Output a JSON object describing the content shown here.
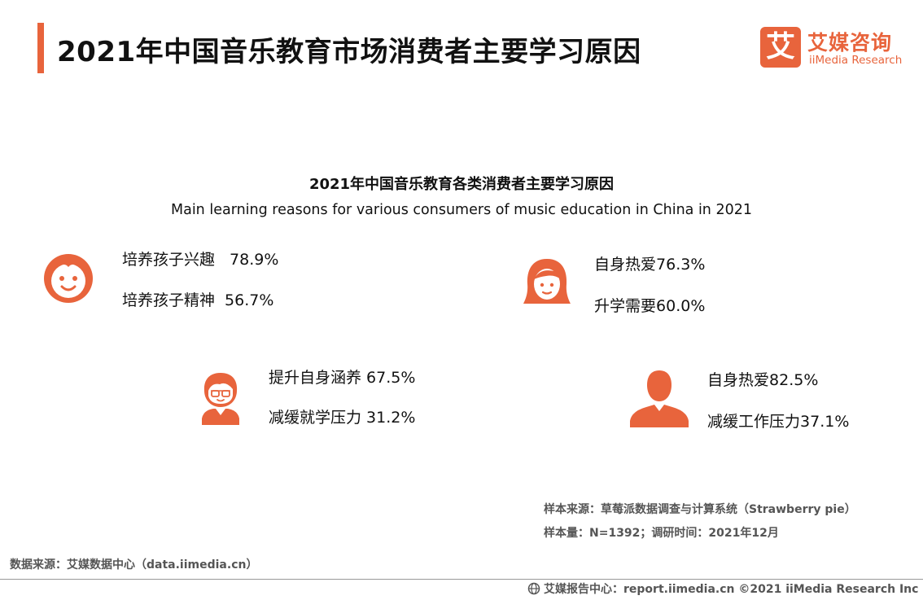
{
  "page_title": "2021年中国音乐教育市场消费者主要学习原因",
  "logo": {
    "mark": "艾",
    "cn": "艾媒咨询",
    "en": "iiMedia Research",
    "icon": "iimedia-logo-icon"
  },
  "subtitle_cn": "2021年中国音乐教育各类消费者主要学习原因",
  "subtitle_en": "Main learning reasons for various consumers of music education in China in 2021",
  "colors": {
    "accent": "#e8643c",
    "text": "#111111",
    "muted": "#555555"
  },
  "groups": [
    {
      "icon": "baby-face-icon",
      "items": [
        {
          "label": "培养孩子兴趣",
          "value": "78.9%"
        },
        {
          "label": "培养孩子精神",
          "value": "56.7%"
        }
      ]
    },
    {
      "icon": "woman-face-icon",
      "items": [
        {
          "label": "自身热爱",
          "value": "76.3%"
        },
        {
          "label": "升学需要",
          "value": "60.0%"
        }
      ]
    },
    {
      "icon": "boy-icon",
      "items": [
        {
          "label": "提升自身涵养",
          "value": "67.5%"
        },
        {
          "label": "减缓就学压力",
          "value": "31.2%"
        }
      ]
    },
    {
      "icon": "adult-silhouette-icon",
      "items": [
        {
          "label": "自身热爱",
          "value": "82.5%"
        },
        {
          "label": "减缓工作压力",
          "value": "37.1%"
        }
      ]
    }
  ],
  "notes": {
    "sample_source": "样本来源：草莓派数据调查与计算系统（Strawberry pie）",
    "sample_size": "样本量：N=1392；调研时间：2021年12月"
  },
  "data_source": "数据来源：艾媒数据中心（data.iimedia.cn）",
  "footer": {
    "text": "艾媒报告中心：report.iimedia.cn  ©2021  iiMedia Research  Inc",
    "icon": "globe-icon"
  }
}
